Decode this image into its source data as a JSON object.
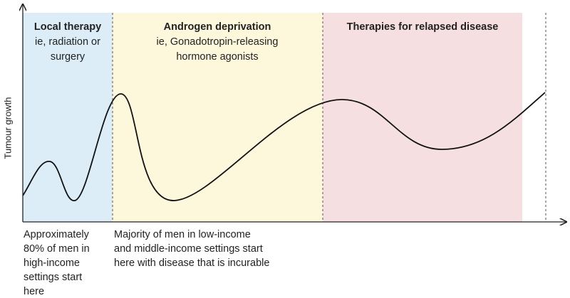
{
  "axis": {
    "y_label": "Tumour growth"
  },
  "regions": [
    {
      "title": "Local therapy",
      "lines": [
        "ie, radiation or",
        "surgery"
      ]
    },
    {
      "title": "Androgen deprivation",
      "lines": [
        "ie, Gonadotropin-releasing",
        "hormone agonists"
      ]
    },
    {
      "title": "Therapies for relapsed disease",
      "lines": []
    }
  ],
  "notes": [
    {
      "lines": [
        "Approximately",
        "80% of men in",
        "high-income",
        "settings start",
        "here"
      ]
    },
    {
      "lines": [
        "Majority of men in low-income",
        "and middle-income settings start",
        "here with disease that is incurable"
      ]
    }
  ]
}
